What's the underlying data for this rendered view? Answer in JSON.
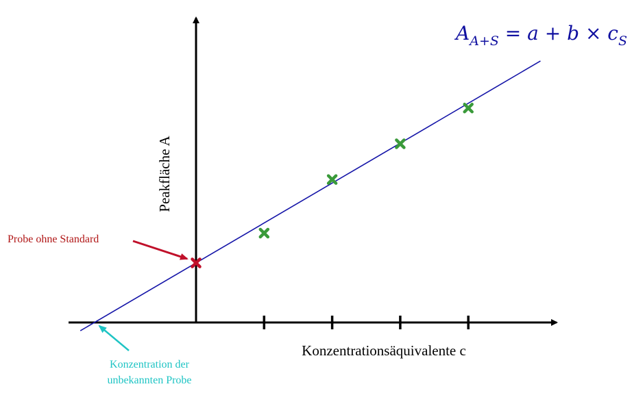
{
  "chart_data": {
    "type": "scatter",
    "xlabel": "Konzentrationsäquivalente c",
    "ylabel": "Peakfläche A",
    "equation": {
      "main": "A",
      "sub": "A+S",
      "rest": " = a + b × c",
      "rest_sub": "S"
    },
    "x_ticks": [
      1,
      2,
      3,
      4
    ],
    "xlim": [
      -1.85,
      5.3
    ],
    "ylim": [
      -0.6,
      5.3
    ],
    "points": [
      {
        "x": 1,
        "y": 1.5
      },
      {
        "x": 2,
        "y": 2.4
      },
      {
        "x": 3,
        "y": 3.0
      },
      {
        "x": 4,
        "y": 3.6
      }
    ],
    "sample_point": {
      "x": 0,
      "y": 1.0
    },
    "regression": {
      "intercept": 1.0,
      "slope": 0.67,
      "x_range": [
        -1.7,
        5.06
      ]
    },
    "x_intercept": -1.45,
    "annotations": {
      "sample": "Probe ohne Standard",
      "unknown_line1": "Konzentration der",
      "unknown_line2": "unbekannten Probe"
    },
    "colors": {
      "axis": "#000000",
      "line": "#1515a8",
      "points": "#3a9a3a",
      "sample": "#c0102a",
      "sample_label": "#b01515",
      "unknown_label": "#1ec4c4",
      "equation": "#1010a0"
    }
  }
}
